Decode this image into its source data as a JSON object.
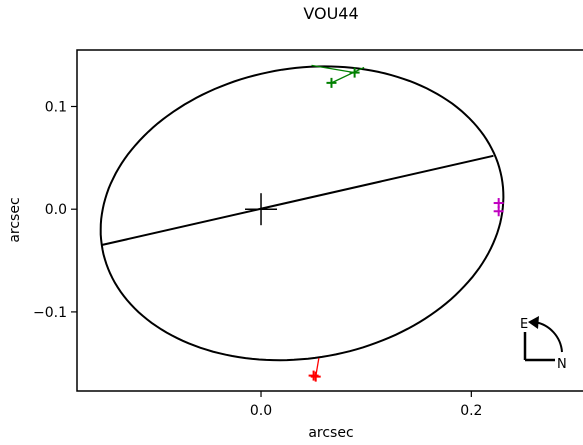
{
  "chart_data": {
    "type": "scatter",
    "title": "VOU44",
    "xlabel": "arcsec",
    "ylabel": "arcsec",
    "xlim": [
      -0.175,
      0.31
    ],
    "ylim": [
      -0.177,
      0.155
    ],
    "x_ticks": [
      {
        "value": 0.0,
        "label": "0.0"
      },
      {
        "value": 0.2,
        "label": "0.2"
      }
    ],
    "y_ticks": [
      {
        "value": 0.1,
        "label": "0.1"
      },
      {
        "value": 0.0,
        "label": "0.0"
      },
      {
        "value": -0.1,
        "label": "−0.1"
      }
    ],
    "grid": false,
    "orbit_ellipse": {
      "center": [
        0.039,
        -0.004
      ],
      "semi_major": 0.193,
      "semi_minor": 0.141,
      "rotation_deg": 10.5,
      "color": "#000000"
    },
    "major_axis_line": {
      "points": [
        [
          -0.152,
          -0.035
        ],
        [
          0.221,
          0.052
        ]
      ],
      "color": "#000000"
    },
    "primary_star": {
      "x": 0.0,
      "y": 0.0,
      "color": "#000000"
    },
    "series": [
      {
        "color": "#008000",
        "observed": [
          [
            0.067,
            0.123
          ],
          [
            0.089,
            0.133
          ]
        ],
        "residuals": [
          {
            "from": [
              0.067,
              0.123
            ],
            "to": [
              0.098,
              0.138
            ]
          },
          {
            "from": [
              0.089,
              0.133
            ],
            "to": [
              0.048,
              0.14
            ]
          }
        ]
      },
      {
        "color": "#c000c0",
        "observed": [
          [
            0.226,
            0.006
          ],
          [
            0.226,
            -0.002
          ]
        ],
        "residuals": []
      },
      {
        "color": "#ff0000",
        "observed": [
          [
            0.05,
            -0.162
          ],
          [
            0.052,
            -0.163
          ]
        ],
        "residuals": [
          {
            "from": [
              0.052,
              -0.163
            ],
            "to": [
              0.055,
              -0.145
            ]
          }
        ]
      }
    ],
    "compass": {
      "east_label": "E",
      "north_label": "N"
    }
  }
}
